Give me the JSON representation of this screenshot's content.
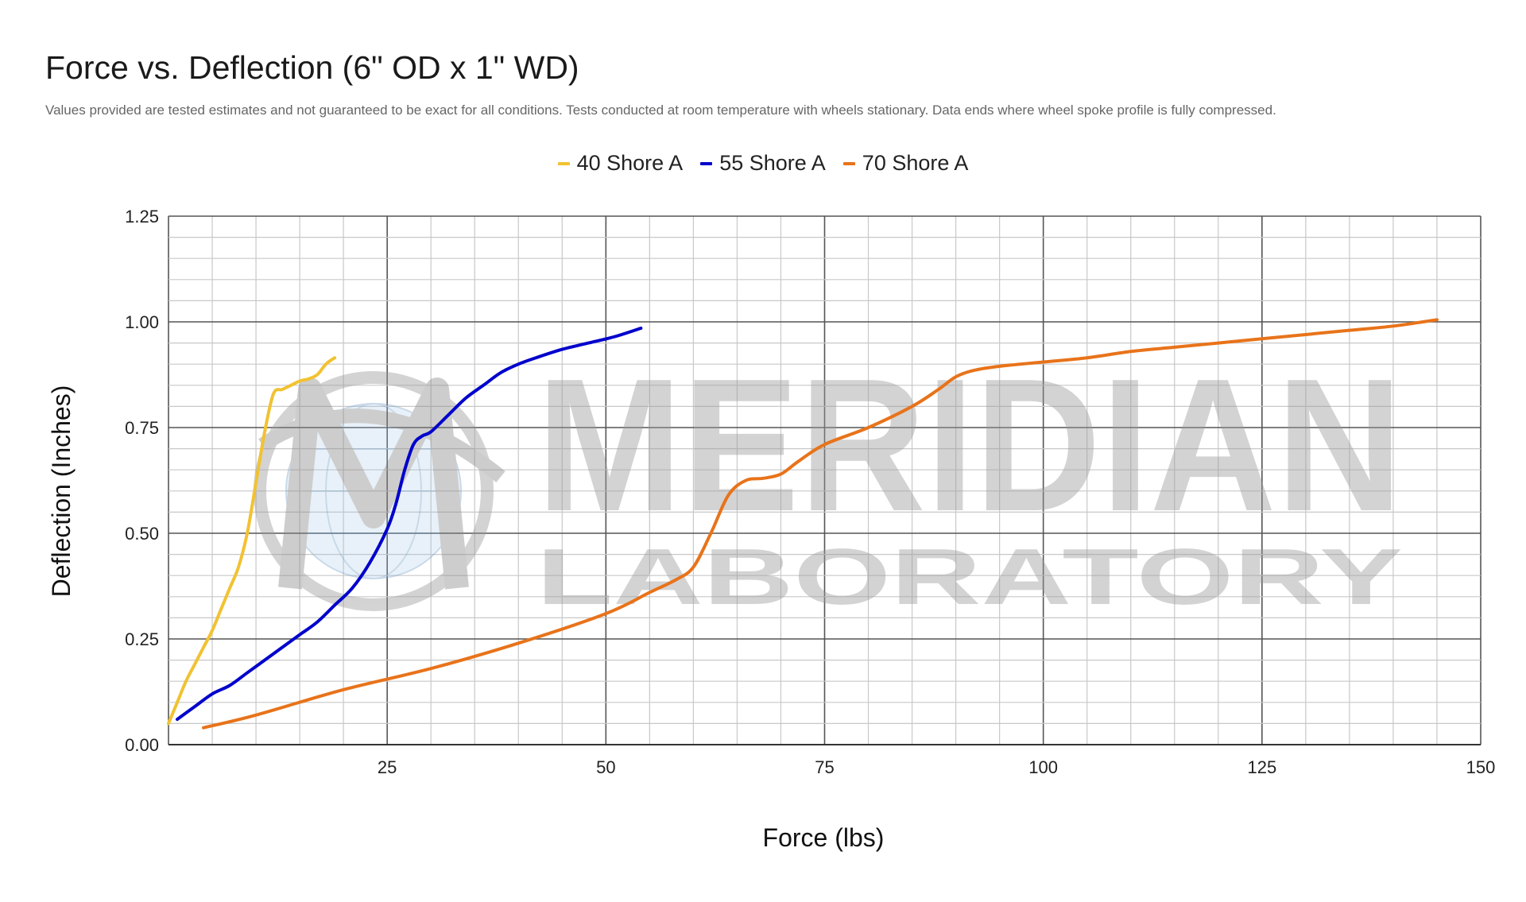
{
  "chart_data": {
    "type": "line",
    "title": "Force vs. Deflection (6\" OD x 1\" WD)",
    "subtitle": "Values provided are tested estimates and not guaranteed to be exact for all conditions. Tests conducted at room temperature with wheels stationary. Data ends where wheel spoke profile is fully compressed.",
    "xlabel": "Force (lbs)",
    "ylabel": "Deflection (Inches)",
    "xlim": [
      0,
      150
    ],
    "ylim": [
      0,
      1.25
    ],
    "x_ticks": [
      "25",
      "50",
      "75",
      "100",
      "125",
      "150"
    ],
    "y_ticks": [
      "0.00",
      "0.25",
      "0.50",
      "0.75",
      "1.00",
      "1.25"
    ],
    "grid": true,
    "legend_position": "top",
    "series": [
      {
        "name": "40 Shore A",
        "color": "#f1c232",
        "points": [
          [
            0,
            0.05
          ],
          [
            1,
            0.1
          ],
          [
            2,
            0.15
          ],
          [
            3,
            0.19
          ],
          [
            4,
            0.23
          ],
          [
            5,
            0.27
          ],
          [
            6,
            0.32
          ],
          [
            7,
            0.37
          ],
          [
            8,
            0.42
          ],
          [
            9,
            0.5
          ],
          [
            10,
            0.62
          ],
          [
            11,
            0.74
          ],
          [
            12,
            0.83
          ],
          [
            13,
            0.84
          ],
          [
            14,
            0.85
          ],
          [
            15,
            0.86
          ],
          [
            16,
            0.865
          ],
          [
            17,
            0.875
          ],
          [
            18,
            0.9
          ],
          [
            19,
            0.915
          ]
        ]
      },
      {
        "name": "55 Shore A",
        "color": "#0000cc",
        "points": [
          [
            1,
            0.06
          ],
          [
            3,
            0.09
          ],
          [
            5,
            0.12
          ],
          [
            7,
            0.14
          ],
          [
            9,
            0.17
          ],
          [
            11,
            0.2
          ],
          [
            13,
            0.23
          ],
          [
            15,
            0.26
          ],
          [
            17,
            0.29
          ],
          [
            19,
            0.33
          ],
          [
            21,
            0.37
          ],
          [
            23,
            0.43
          ],
          [
            25,
            0.51
          ],
          [
            26,
            0.57
          ],
          [
            27,
            0.65
          ],
          [
            28,
            0.71
          ],
          [
            29,
            0.73
          ],
          [
            30,
            0.74
          ],
          [
            32,
            0.78
          ],
          [
            34,
            0.82
          ],
          [
            36,
            0.85
          ],
          [
            38,
            0.88
          ],
          [
            40,
            0.9
          ],
          [
            42,
            0.915
          ],
          [
            45,
            0.935
          ],
          [
            48,
            0.95
          ],
          [
            51,
            0.965
          ],
          [
            54,
            0.985
          ]
        ]
      },
      {
        "name": "70 Shore A",
        "color": "#e8731a",
        "points": [
          [
            4,
            0.04
          ],
          [
            10,
            0.07
          ],
          [
            20,
            0.13
          ],
          [
            30,
            0.18
          ],
          [
            40,
            0.24
          ],
          [
            50,
            0.31
          ],
          [
            55,
            0.36
          ],
          [
            58,
            0.39
          ],
          [
            60,
            0.42
          ],
          [
            62,
            0.5
          ],
          [
            64,
            0.59
          ],
          [
            66,
            0.625
          ],
          [
            68,
            0.63
          ],
          [
            70,
            0.64
          ],
          [
            72,
            0.67
          ],
          [
            75,
            0.71
          ],
          [
            80,
            0.75
          ],
          [
            85,
            0.8
          ],
          [
            88,
            0.84
          ],
          [
            90,
            0.87
          ],
          [
            92,
            0.885
          ],
          [
            95,
            0.895
          ],
          [
            100,
            0.905
          ],
          [
            105,
            0.915
          ],
          [
            110,
            0.93
          ],
          [
            115,
            0.94
          ],
          [
            120,
            0.95
          ],
          [
            125,
            0.96
          ],
          [
            130,
            0.97
          ],
          [
            135,
            0.98
          ],
          [
            140,
            0.99
          ],
          [
            145,
            1.005
          ]
        ]
      }
    ]
  },
  "watermark": {
    "brand": "MERIDIAN",
    "sub": "LABORATORY"
  }
}
